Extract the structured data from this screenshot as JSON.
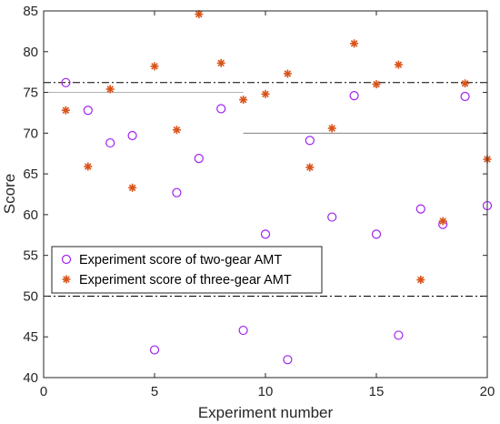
{
  "chart_data": {
    "type": "scatter",
    "xlabel": "Experiment number",
    "ylabel": "Score",
    "xlim": [
      0,
      20
    ],
    "ylim": [
      40,
      85
    ],
    "xticks": [
      0,
      5,
      10,
      15,
      20
    ],
    "yticks": [
      40,
      45,
      50,
      55,
      60,
      65,
      70,
      75,
      80,
      85
    ],
    "grid": false,
    "legend_position": "lower-left",
    "series": [
      {
        "name": "Experiment score of two-gear AMT",
        "marker": "circle",
        "color": "#a020f0",
        "x": [
          1,
          2,
          3,
          4,
          5,
          6,
          7,
          8,
          9,
          10,
          11,
          12,
          13,
          14,
          15,
          16,
          17,
          18,
          19,
          20
        ],
        "y": [
          76.2,
          72.8,
          68.8,
          69.7,
          43.4,
          62.7,
          66.9,
          73.0,
          45.8,
          57.6,
          42.2,
          69.1,
          59.7,
          74.6,
          57.6,
          45.2,
          60.7,
          58.8,
          74.5,
          61.1
        ]
      },
      {
        "name": "Experiment score of three-gear AMT",
        "marker": "asterisk",
        "color": "#d95319",
        "x": [
          1,
          2,
          3,
          4,
          5,
          6,
          7,
          8,
          9,
          10,
          11,
          12,
          13,
          14,
          15,
          16,
          17,
          18,
          19,
          20
        ],
        "y": [
          72.8,
          65.9,
          75.4,
          63.3,
          78.2,
          70.4,
          84.6,
          78.6,
          74.1,
          74.8,
          77.3,
          65.8,
          70.6,
          81.0,
          76.0,
          78.4,
          52.0,
          59.2,
          76.1,
          66.8
        ]
      }
    ],
    "reference_lines": [
      {
        "y": 76.2,
        "style": "dash-dot",
        "color": "#000000",
        "x_from": 0,
        "x_to": 20
      },
      {
        "y": 50,
        "style": "dash-dot",
        "color": "#000000",
        "x_from": 0,
        "x_to": 20
      },
      {
        "y": 75,
        "style": "solid",
        "color": "#b0b0b0",
        "x_from": 0,
        "x_to": 9
      },
      {
        "y": 70,
        "style": "solid",
        "color": "#808080",
        "x_from": 9,
        "x_to": 20
      }
    ]
  }
}
